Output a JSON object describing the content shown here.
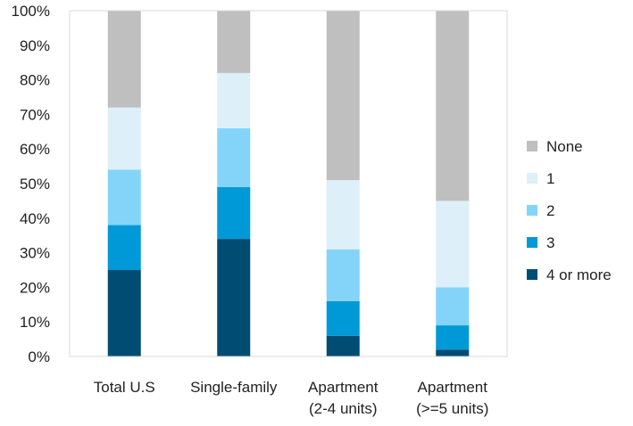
{
  "chart_data": {
    "type": "bar",
    "stacked": true,
    "title": "",
    "xlabel": "",
    "ylabel": "",
    "ylim": [
      0,
      100
    ],
    "y_ticks": [
      "0%",
      "10%",
      "20%",
      "30%",
      "40%",
      "50%",
      "60%",
      "70%",
      "80%",
      "90%",
      "100%"
    ],
    "y_tick_values": [
      0,
      10,
      20,
      30,
      40,
      50,
      60,
      70,
      80,
      90,
      100
    ],
    "grid": false,
    "legend_position": "right",
    "categories": [
      [
        "Total U.S"
      ],
      [
        "Single-family"
      ],
      [
        "Apartment",
        "(2-4 units)"
      ],
      [
        "Apartment",
        "(>=5  units)"
      ]
    ],
    "series": [
      {
        "name": "4 or more",
        "color": "#004C72",
        "values": [
          25,
          34,
          6,
          2
        ]
      },
      {
        "name": "3",
        "color": "#0099D8",
        "values": [
          13,
          15,
          10,
          7
        ]
      },
      {
        "name": "2",
        "color": "#84D4FA",
        "values": [
          16,
          17,
          15,
          11
        ]
      },
      {
        "name": "1",
        "color": "#DDEFF8",
        "values": [
          18,
          16,
          20,
          25
        ]
      },
      {
        "name": "None",
        "color": "#BFBFBF",
        "values": [
          28,
          18,
          49,
          55
        ]
      }
    ],
    "legend_order": [
      "None",
      "1",
      "2",
      "3",
      "4 or more"
    ]
  }
}
